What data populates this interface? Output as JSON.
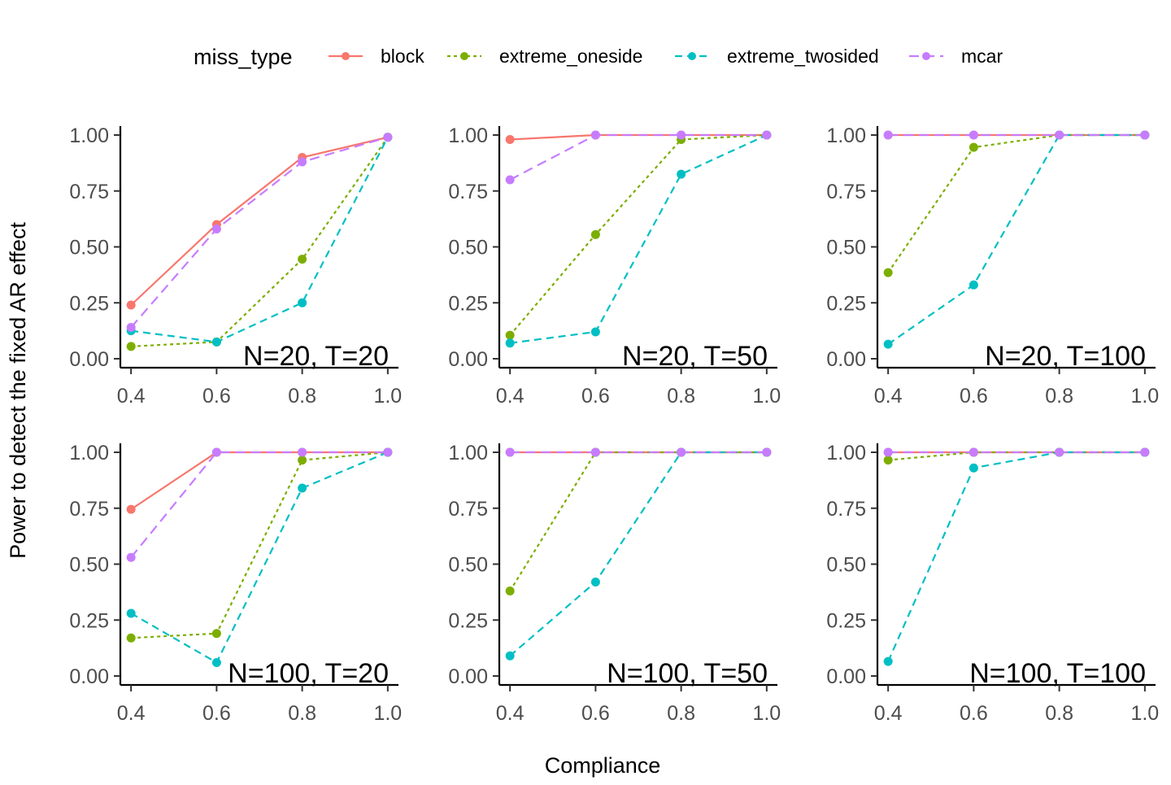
{
  "chart_data": {
    "type": "line",
    "title": "",
    "xlabel": "Compliance",
    "ylabel": "Power to detect the fixed AR effect",
    "x_ticks": [
      "0.4",
      "0.6",
      "0.8",
      "1.0"
    ],
    "y_ticks": [
      "0.00",
      "0.25",
      "0.50",
      "0.75",
      "1.00"
    ],
    "xlim": [
      0.375,
      1.025
    ],
    "ylim": [
      -0.04,
      1.04
    ],
    "grid": false,
    "legend": {
      "title": "miss_type",
      "position": "top",
      "entries": [
        {
          "name": "block",
          "color": "#F8766D",
          "dash": "solid"
        },
        {
          "name": "extreme_oneside",
          "color": "#7CAE00",
          "dash": "dotted"
        },
        {
          "name": "extreme_twosided",
          "color": "#00BFC4",
          "dash": "dashed"
        },
        {
          "name": "mcar",
          "color": "#C77CFF",
          "dash": "longdash"
        }
      ]
    },
    "x": [
      0.4,
      0.6,
      0.8,
      1.0
    ],
    "panels": [
      {
        "label": "N=20, T=20",
        "series": [
          {
            "name": "block",
            "values": [
              0.24,
              0.6,
              0.9,
              0.99
            ]
          },
          {
            "name": "extreme_oneside",
            "values": [
              0.055,
              0.075,
              0.445,
              0.99
            ]
          },
          {
            "name": "extreme_twosided",
            "values": [
              0.125,
              0.075,
              0.25,
              0.99
            ]
          },
          {
            "name": "mcar",
            "values": [
              0.14,
              0.58,
              0.88,
              0.99
            ]
          }
        ]
      },
      {
        "label": "N=20, T=50",
        "series": [
          {
            "name": "block",
            "values": [
              0.98,
              1.0,
              1.0,
              1.0
            ]
          },
          {
            "name": "extreme_oneside",
            "values": [
              0.105,
              0.555,
              0.98,
              1.0
            ]
          },
          {
            "name": "extreme_twosided",
            "values": [
              0.07,
              0.12,
              0.825,
              1.0
            ]
          },
          {
            "name": "mcar",
            "values": [
              0.8,
              1.0,
              1.0,
              1.0
            ]
          }
        ]
      },
      {
        "label": "N=20, T=100",
        "series": [
          {
            "name": "block",
            "values": [
              1.0,
              1.0,
              1.0,
              1.0
            ]
          },
          {
            "name": "extreme_oneside",
            "values": [
              0.385,
              0.945,
              1.0,
              1.0
            ]
          },
          {
            "name": "extreme_twosided",
            "values": [
              0.065,
              0.33,
              1.0,
              1.0
            ]
          },
          {
            "name": "mcar",
            "values": [
              1.0,
              1.0,
              1.0,
              1.0
            ]
          }
        ]
      },
      {
        "label": "N=100, T=20",
        "series": [
          {
            "name": "block",
            "values": [
              0.745,
              1.0,
              1.0,
              1.0
            ]
          },
          {
            "name": "extreme_oneside",
            "values": [
              0.17,
              0.19,
              0.965,
              1.0
            ]
          },
          {
            "name": "extreme_twosided",
            "values": [
              0.28,
              0.06,
              0.84,
              1.0
            ]
          },
          {
            "name": "mcar",
            "values": [
              0.53,
              1.0,
              1.0,
              1.0
            ]
          }
        ]
      },
      {
        "label": "N=100, T=50",
        "series": [
          {
            "name": "block",
            "values": [
              1.0,
              1.0,
              1.0,
              1.0
            ]
          },
          {
            "name": "extreme_oneside",
            "values": [
              0.38,
              1.0,
              1.0,
              1.0
            ]
          },
          {
            "name": "extreme_twosided",
            "values": [
              0.09,
              0.42,
              1.0,
              1.0
            ]
          },
          {
            "name": "mcar",
            "values": [
              1.0,
              1.0,
              1.0,
              1.0
            ]
          }
        ]
      },
      {
        "label": "N=100, T=100",
        "series": [
          {
            "name": "block",
            "values": [
              1.0,
              1.0,
              1.0,
              1.0
            ]
          },
          {
            "name": "extreme_oneside",
            "values": [
              0.965,
              1.0,
              1.0,
              1.0
            ]
          },
          {
            "name": "extreme_twosided",
            "values": [
              0.065,
              0.93,
              1.0,
              1.0
            ]
          },
          {
            "name": "mcar",
            "values": [
              1.0,
              1.0,
              1.0,
              1.0
            ]
          }
        ]
      }
    ]
  }
}
